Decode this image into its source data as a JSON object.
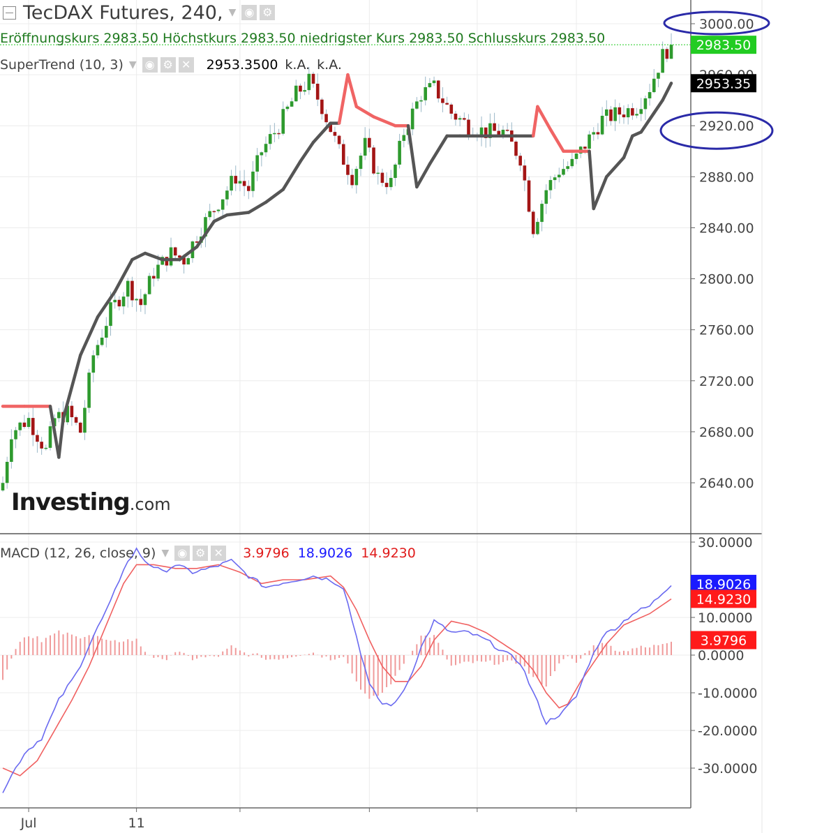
{
  "header": {
    "title": "TecDAX Futures, 240,",
    "ohlc": [
      {
        "label": "Eröffnungskurs",
        "value": "2983.50"
      },
      {
        "label": "Höchstkurs",
        "value": "2983.50"
      },
      {
        "label": "niedrigster Kurs",
        "value": "2983.50"
      },
      {
        "label": "Schlusskurs",
        "value": "2983.50"
      }
    ],
    "supertrend_label": "SuperTrend (10, 3)",
    "supertrend_value": "2953.3500",
    "supertrend_na1": "k.A.",
    "supertrend_na2": "k.A.",
    "macd_label": "MACD (12, 26, close, 9)",
    "macd_hist_value": "3.9796",
    "macd_value": "18.9026",
    "macd_signal_value": "14.9230"
  },
  "logo": {
    "big": "Investing",
    "small": ".com"
  },
  "colors": {
    "bull": "#2e9a2e",
    "bear": "#a31515",
    "st_up": "#555555",
    "st_down": "#f06464",
    "macd": "#6a6af0",
    "signal": "#f06060",
    "hist": "#f09a9a",
    "last_price": "#22cc22",
    "st_badge": "#000000",
    "macd_badge": "#1a1aff",
    "signal_badge": "#ff1a1a",
    "annotation": "#2a2aa8"
  },
  "chart_data": [
    {
      "type": "candlestick",
      "title": "TecDAX Futures, 240,",
      "ylim": [
        2620,
        3008
      ],
      "ticks": [
        "3000.00",
        "2960.00",
        "2920.00",
        "2880.00",
        "2840.00",
        "2800.00",
        "2760.00",
        "2720.00",
        "2680.00",
        "2640.00"
      ],
      "tick_values": [
        3000,
        2960,
        2920,
        2880,
        2840,
        2800,
        2760,
        2720,
        2680,
        2640
      ],
      "xtick_labels": [
        "Jul",
        "11"
      ],
      "last_price_label": "2983.50",
      "last_price": 2983.5,
      "supertrend_label_value": "2953.35",
      "supertrend_value": 2953.35,
      "annotations": [
        "3000.00",
        "2920.00"
      ],
      "anchors": [
        [
          0,
          2640
        ],
        [
          2,
          2680
        ],
        [
          6,
          2690
        ],
        [
          10,
          2665
        ],
        [
          12,
          2690
        ],
        [
          15,
          2695
        ],
        [
          18,
          2680
        ],
        [
          21,
          2740
        ],
        [
          25,
          2775
        ],
        [
          29,
          2795
        ],
        [
          32,
          2780
        ],
        [
          35,
          2805
        ],
        [
          39,
          2820
        ],
        [
          42,
          2815
        ],
        [
          46,
          2840
        ],
        [
          50,
          2860
        ],
        [
          54,
          2880
        ],
        [
          57,
          2870
        ],
        [
          60,
          2900
        ],
        [
          64,
          2920
        ],
        [
          68,
          2945
        ],
        [
          71,
          2955
        ],
        [
          74,
          2935
        ],
        [
          78,
          2900
        ],
        [
          81,
          2880
        ],
        [
          84,
          2905
        ],
        [
          87,
          2880
        ],
        [
          90,
          2875
        ],
        [
          93,
          2915
        ],
        [
          97,
          2945
        ],
        [
          100,
          2950
        ],
        [
          104,
          2930
        ],
        [
          108,
          2920
        ],
        [
          112,
          2915
        ],
        [
          116,
          2915
        ],
        [
          120,
          2895
        ],
        [
          123,
          2840
        ],
        [
          126,
          2870
        ],
        [
          129,
          2885
        ],
        [
          132,
          2890
        ],
        [
          135,
          2905
        ],
        [
          139,
          2925
        ],
        [
          143,
          2930
        ],
        [
          147,
          2935
        ],
        [
          150,
          2950
        ],
        [
          153,
          2975
        ],
        [
          155,
          2983.5
        ]
      ],
      "supertrend": [
        [
          0,
          2700,
          "down"
        ],
        [
          5,
          2700,
          "down"
        ],
        [
          11,
          2700,
          "down"
        ],
        [
          12,
          2680,
          "up"
        ],
        [
          13,
          2660,
          "up"
        ],
        [
          14,
          2690,
          "up"
        ],
        [
          18,
          2740,
          "up"
        ],
        [
          22,
          2770,
          "up"
        ],
        [
          26,
          2790,
          "up"
        ],
        [
          30,
          2815,
          "up"
        ],
        [
          33,
          2820,
          "up"
        ],
        [
          37,
          2815,
          "up"
        ],
        [
          41,
          2815,
          "up"
        ],
        [
          45,
          2825,
          "up"
        ],
        [
          49,
          2845,
          "up"
        ],
        [
          52,
          2850,
          "up"
        ],
        [
          57,
          2852,
          "up"
        ],
        [
          61,
          2860,
          "up"
        ],
        [
          65,
          2870,
          "up"
        ],
        [
          69,
          2892,
          "up"
        ],
        [
          72,
          2907,
          "up"
        ],
        [
          76,
          2922,
          "up"
        ],
        [
          78,
          2922,
          "up"
        ],
        [
          80,
          2960,
          "down"
        ],
        [
          82,
          2935,
          "down"
        ],
        [
          86,
          2927,
          "down"
        ],
        [
          91,
          2920,
          "down"
        ],
        [
          94,
          2920,
          "down"
        ],
        [
          96,
          2872,
          "up"
        ],
        [
          99,
          2890,
          "up"
        ],
        [
          103,
          2912,
          "up"
        ],
        [
          106,
          2912,
          "up"
        ],
        [
          113,
          2912,
          "up"
        ],
        [
          119,
          2912,
          "up"
        ],
        [
          123,
          2912,
          "up"
        ],
        [
          124,
          2935,
          "down"
        ],
        [
          127,
          2917,
          "down"
        ],
        [
          130,
          2900,
          "down"
        ],
        [
          133,
          2900,
          "down"
        ],
        [
          136,
          2900,
          "down"
        ],
        [
          137,
          2855,
          "up"
        ],
        [
          140,
          2880,
          "up"
        ],
        [
          144,
          2895,
          "up"
        ],
        [
          146,
          2912,
          "up"
        ],
        [
          148,
          2915,
          "up"
        ],
        [
          151,
          2930,
          "up"
        ],
        [
          153,
          2940,
          "up"
        ],
        [
          155,
          2953.35,
          "up"
        ]
      ]
    },
    {
      "type": "line",
      "title": "MACD (12, 26, close, 9)",
      "ylim": [
        -40,
        33
      ],
      "ticks": [
        "30.0000",
        "10.0000",
        "0.0000",
        "-10.0000",
        "-20.0000",
        "-30.0000"
      ],
      "tick_values": [
        30,
        10,
        0,
        -10,
        -20,
        -30
      ],
      "badges": [
        {
          "label": "18.9026",
          "value": 18.9026,
          "series": "MACD"
        },
        {
          "label": "14.9230",
          "value": 14.923,
          "series": "Signal"
        },
        {
          "label": "3.9796",
          "value": 3.9796,
          "series": "Histogram"
        }
      ],
      "macd_anchors": [
        [
          0,
          -36
        ],
        [
          2,
          -32
        ],
        [
          5,
          -26
        ],
        [
          9,
          -22
        ],
        [
          13,
          -12
        ],
        [
          17,
          -5
        ],
        [
          21,
          5
        ],
        [
          25,
          14
        ],
        [
          28,
          23
        ],
        [
          31,
          28
        ],
        [
          33,
          25
        ],
        [
          37,
          22
        ],
        [
          40,
          24
        ],
        [
          44,
          22
        ],
        [
          48,
          23
        ],
        [
          53,
          25
        ],
        [
          57,
          21
        ],
        [
          61,
          18
        ],
        [
          64,
          19
        ],
        [
          68,
          20
        ],
        [
          72,
          21
        ],
        [
          76,
          20
        ],
        [
          79,
          18
        ],
        [
          82,
          5
        ],
        [
          85,
          -8
        ],
        [
          88,
          -13
        ],
        [
          91,
          -13
        ],
        [
          94,
          -7
        ],
        [
          97,
          2
        ],
        [
          100,
          9
        ],
        [
          104,
          6
        ],
        [
          108,
          6
        ],
        [
          112,
          4
        ],
        [
          116,
          1
        ],
        [
          120,
          -2
        ],
        [
          123,
          -10
        ],
        [
          126,
          -18
        ],
        [
          130,
          -15
        ],
        [
          133,
          -11
        ],
        [
          136,
          -2
        ],
        [
          139,
          5
        ],
        [
          143,
          8
        ],
        [
          146,
          11
        ],
        [
          150,
          13
        ],
        [
          155,
          18.9
        ]
      ],
      "signal_anchors": [
        [
          0,
          -30
        ],
        [
          4,
          -32
        ],
        [
          8,
          -28
        ],
        [
          12,
          -20
        ],
        [
          16,
          -12
        ],
        [
          20,
          -3
        ],
        [
          24,
          8
        ],
        [
          28,
          19
        ],
        [
          31,
          24
        ],
        [
          35,
          24
        ],
        [
          40,
          23
        ],
        [
          45,
          23
        ],
        [
          50,
          24
        ],
        [
          55,
          22
        ],
        [
          60,
          19
        ],
        [
          65,
          20
        ],
        [
          70,
          20
        ],
        [
          76,
          21
        ],
        [
          79,
          18
        ],
        [
          82,
          12
        ],
        [
          85,
          4
        ],
        [
          88,
          -3
        ],
        [
          91,
          -7
        ],
        [
          94,
          -7
        ],
        [
          97,
          -3
        ],
        [
          100,
          4
        ],
        [
          104,
          9
        ],
        [
          108,
          8
        ],
        [
          112,
          6
        ],
        [
          116,
          3
        ],
        [
          120,
          0
        ],
        [
          123,
          -4
        ],
        [
          126,
          -10
        ],
        [
          129,
          -14
        ],
        [
          131,
          -13
        ],
        [
          134,
          -7
        ],
        [
          137,
          -2
        ],
        [
          140,
          3
        ],
        [
          144,
          8
        ],
        [
          150,
          11
        ],
        [
          155,
          14.9
        ]
      ]
    }
  ]
}
